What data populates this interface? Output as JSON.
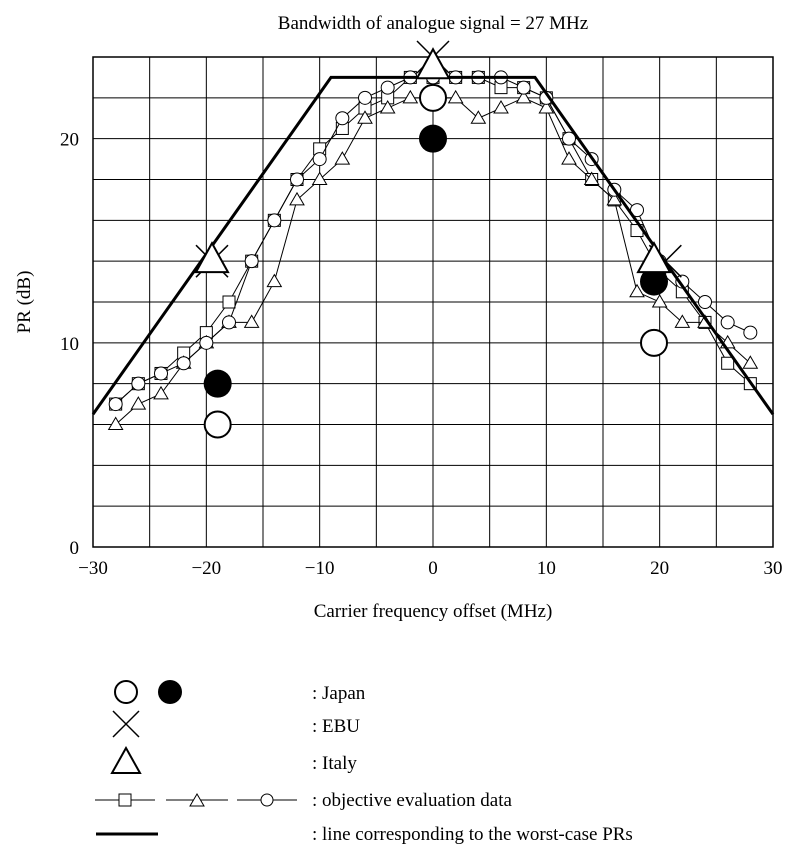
{
  "chart_data": {
    "type": "line",
    "title": "Bandwidth of analogue signal = 27 MHz",
    "xlabel": "Carrier frequency offset (MHz)",
    "ylabel": "PR (dB)",
    "xlim": [
      -30,
      30
    ],
    "ylim": [
      0,
      24
    ],
    "x_ticks": [
      -30,
      -20,
      -10,
      0,
      10,
      20,
      30
    ],
    "x_tick_labels": [
      "−30",
      "−20",
      "−10",
      "0",
      "10",
      "20",
      "30"
    ],
    "y_ticks": [
      0,
      10,
      20
    ],
    "y_tick_labels": [
      "0",
      "10",
      "20"
    ],
    "x_grid_step": 5,
    "y_grid_step": 2,
    "grid": true,
    "series": [
      {
        "marker": "square-line",
        "x": [
          -28,
          -26,
          -24,
          -22,
          -20,
          -18,
          -16,
          -14,
          -12,
          -10,
          -8,
          -6,
          -4,
          -2,
          0,
          2,
          4,
          6,
          8,
          10,
          12,
          14,
          16,
          18,
          20,
          22,
          24,
          26,
          28
        ],
        "y": [
          7,
          8,
          8.5,
          9.5,
          10.5,
          12,
          14,
          16,
          18,
          19.5,
          20.5,
          21.5,
          22,
          23,
          23,
          23,
          23,
          22.5,
          22.5,
          22,
          20,
          18,
          17,
          15.5,
          13.5,
          12.5,
          11,
          9,
          8
        ]
      },
      {
        "marker": "triangle-line",
        "x": [
          -28,
          -26,
          -24,
          -22,
          -20,
          -18,
          -16,
          -14,
          -12,
          -10,
          -8,
          -6,
          -4,
          -2,
          0,
          2,
          4,
          6,
          8,
          10,
          12,
          14,
          16,
          18,
          20,
          22,
          24,
          26,
          28
        ],
        "y": [
          6,
          7,
          7.5,
          9,
          10,
          11,
          11,
          13,
          17,
          18,
          19,
          21,
          21.5,
          22,
          22,
          22,
          21,
          21.5,
          22,
          21.5,
          19,
          18,
          17,
          12.5,
          12,
          11,
          11,
          10,
          9
        ]
      },
      {
        "marker": "circle-line",
        "x": [
          -28,
          -26,
          -24,
          -22,
          -20,
          -18,
          -16,
          -14,
          -12,
          -10,
          -8,
          -6,
          -4,
          -2,
          0,
          2,
          4,
          6,
          8,
          10,
          12,
          14,
          16,
          18,
          20,
          22,
          24,
          26,
          28
        ],
        "y": [
          7,
          8,
          8.5,
          9,
          10,
          11,
          14,
          16,
          18,
          19,
          21,
          22,
          22.5,
          23,
          23,
          23,
          23,
          23,
          22.5,
          22,
          20,
          19,
          17.5,
          16.5,
          14,
          13,
          12,
          11,
          10.5
        ]
      },
      {
        "marker": "thick-line",
        "x": [
          -30,
          -9,
          9,
          30
        ],
        "y": [
          6.5,
          23,
          23,
          6.5
        ]
      }
    ],
    "points": [
      {
        "marker": "open-circle",
        "x": 0,
        "y": 22
      },
      {
        "marker": "filled-circle",
        "x": 0,
        "y": 20
      },
      {
        "marker": "open-circle",
        "x": -19,
        "y": 6
      },
      {
        "marker": "filled-circle",
        "x": -19,
        "y": 8
      },
      {
        "marker": "open-circle",
        "x": 19.5,
        "y": 10
      },
      {
        "marker": "filled-circle",
        "x": 19.5,
        "y": 13
      },
      {
        "marker": "cross",
        "x": 0,
        "y": 24
      },
      {
        "marker": "cross",
        "x": -19.5,
        "y": 14
      },
      {
        "marker": "cross",
        "x": 20.5,
        "y": 14
      },
      {
        "marker": "big-triangle",
        "x": 0,
        "y": 23.5
      },
      {
        "marker": "big-triangle",
        "x": -19.5,
        "y": 14
      },
      {
        "marker": "big-triangle",
        "x": 19.5,
        "y": 14
      }
    ],
    "legend": {
      "placement": "below",
      "entries": [
        {
          "symbol": "open-and-filled-circle",
          "label": ": Japan"
        },
        {
          "symbol": "cross",
          "label": ": EBU"
        },
        {
          "symbol": "big-triangle",
          "label": ": Italy"
        },
        {
          "symbol": "square-triangle-circle-lines",
          "label": ": objective evaluation data"
        },
        {
          "symbol": "thick-line",
          "label": ": line corresponding to the worst-case PRs"
        }
      ]
    }
  }
}
